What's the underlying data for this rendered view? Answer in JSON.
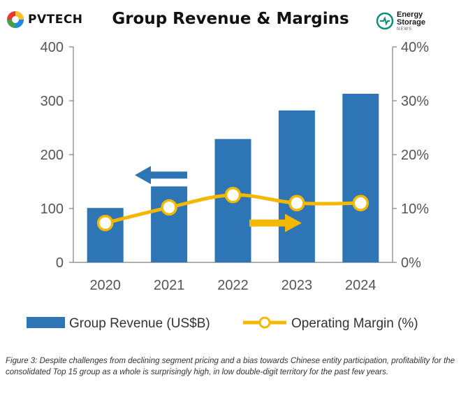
{
  "header": {
    "title": "Group Revenue & Margins",
    "left_logo_text": "PVTECH",
    "right_logo_line1": "Energy",
    "right_logo_line2": "Storage",
    "right_logo_line3": "NEWS"
  },
  "colors": {
    "bar": "#2E75B6",
    "line": "#F5B800",
    "arrow_left": "#2E75B6",
    "arrow_right": "#F5B800",
    "axis": "#7F7F7F"
  },
  "chart_data": {
    "type": "bar+line",
    "categories": [
      "2020",
      "2021",
      "2022",
      "2023",
      "2024"
    ],
    "series": [
      {
        "name": "Group Revenue (US$B)",
        "type": "bar",
        "axis": "left",
        "values": [
          101,
          141,
          229,
          282,
          313
        ]
      },
      {
        "name": "Operating Margin (%)",
        "type": "line",
        "axis": "right",
        "values": [
          7.3,
          10.2,
          12.5,
          11.0,
          11.0
        ]
      }
    ],
    "left_axis": {
      "ylim": [
        0,
        400
      ],
      "ticks": [
        0,
        100,
        200,
        300,
        400
      ],
      "tick_labels": [
        "0",
        "100",
        "200",
        "300",
        "400"
      ]
    },
    "right_axis": {
      "ylim": [
        0,
        40
      ],
      "ticks": [
        0,
        10,
        20,
        30,
        40
      ],
      "tick_labels": [
        "0%",
        "10%",
        "20%",
        "30%",
        "40%"
      ]
    },
    "grid": false,
    "legend_position": "bottom",
    "annotations": [
      {
        "type": "arrow",
        "direction": "left",
        "meaning": "left axis",
        "color": "#2E75B6"
      },
      {
        "type": "arrow",
        "direction": "right",
        "meaning": "right axis",
        "color": "#F5B800"
      }
    ]
  },
  "caption": "Figure 3: Despite challenges from declining segment pricing and a bias towards Chinese entity participation, profitability for the consolidated Top 15 group as a whole is surprisingly high, in low double-digit territory for the past few years."
}
